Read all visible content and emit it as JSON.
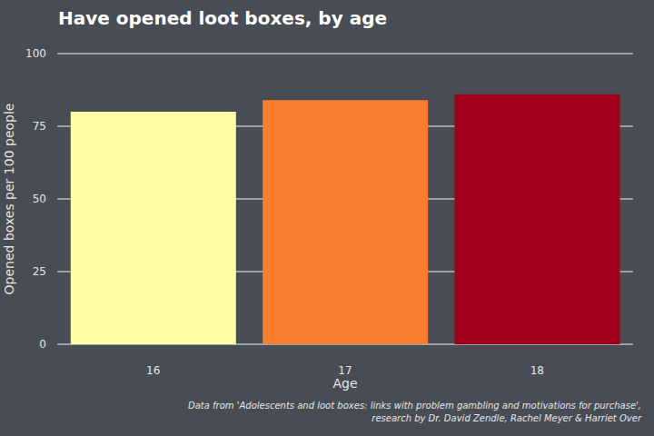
{
  "chart_data": {
    "type": "bar",
    "title": "Have opened loot boxes, by age",
    "x_label": "Age",
    "y_label": "Opened boxes per 100 people",
    "categories": [
      "16",
      "17",
      "18"
    ],
    "values": [
      80,
      84,
      86
    ],
    "colors": [
      "#ffffa8",
      "#fb7d30",
      "#a0001e"
    ],
    "ylim": [
      0,
      100
    ],
    "yticks": [
      0,
      25,
      50,
      75,
      100
    ],
    "grid": true,
    "caption": [
      "Data from 'Adolescents and loot boxes: links with problem gambling and motivations for purchase',",
      "research by Dr. David Zendle, Rachel Meyer & Harriet Over"
    ]
  }
}
